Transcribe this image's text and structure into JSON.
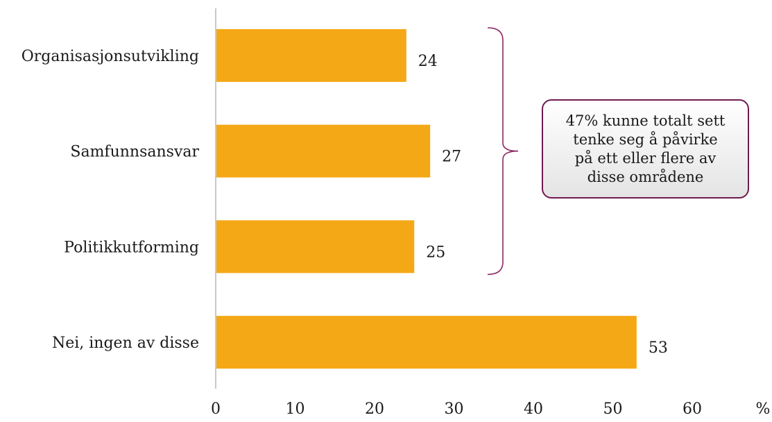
{
  "chart_data": {
    "type": "bar",
    "orientation": "horizontal",
    "categories": [
      "Organisasjonsutvikling",
      "Samfunnsansvar",
      "Politikkutforming",
      "Nei, ingen av disse"
    ],
    "values": [
      24,
      27,
      25,
      53
    ],
    "xlim": [
      0,
      60
    ],
    "x_ticks": [
      0,
      10,
      20,
      30,
      40,
      50,
      60
    ],
    "x_ticks_text": [
      "0",
      "10",
      "20",
      "30",
      "40",
      "50",
      "60"
    ],
    "x_unit_label": "%",
    "bar_color": "#F5A816",
    "callout": {
      "text": "47% kunne totalt sett\ntenke seg å påvirke\npå ett eller flere av\ndisse områdene",
      "border_color": "#6E1A4F",
      "brace_color": "#8B2A63",
      "spans_categories": [
        "Organisasjonsutvikling",
        "Samfunnsansvar",
        "Politikkutforming"
      ]
    }
  }
}
